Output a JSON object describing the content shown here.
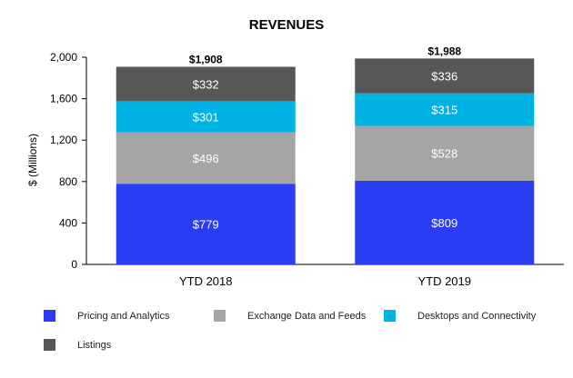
{
  "chart_data": {
    "type": "bar",
    "stacked": true,
    "title": "REVENUES",
    "ylabel": "$ (Millions)",
    "xlabel": "",
    "ylim": [
      0,
      2000
    ],
    "yticks": [
      0,
      400,
      800,
      1200,
      1600,
      2000
    ],
    "ytick_labels": [
      "0",
      "400",
      "800",
      "1,200",
      "1,600",
      "2,000"
    ],
    "categories": [
      "YTD 2018",
      "YTD 2019"
    ],
    "totals": [
      1908,
      1988
    ],
    "total_labels": [
      "$1,908",
      "$1,988"
    ],
    "series": [
      {
        "name": "Pricing and Analytics",
        "color": "#2b3df2",
        "values": [
          779,
          809
        ],
        "labels": [
          "$779",
          "$809"
        ]
      },
      {
        "name": "Exchange Data and Feeds",
        "color": "#a5a5a5",
        "values": [
          496,
          528
        ],
        "labels": [
          "$496",
          "$528"
        ]
      },
      {
        "name": "Desktops and Connectivity",
        "color": "#00b3e3",
        "values": [
          301,
          315
        ],
        "labels": [
          "$301",
          "$315"
        ]
      },
      {
        "name": "Listings",
        "color": "#575757",
        "values": [
          332,
          336
        ],
        "labels": [
          "$332",
          "$336"
        ]
      }
    ],
    "grid": false,
    "legend_position": "bottom"
  }
}
